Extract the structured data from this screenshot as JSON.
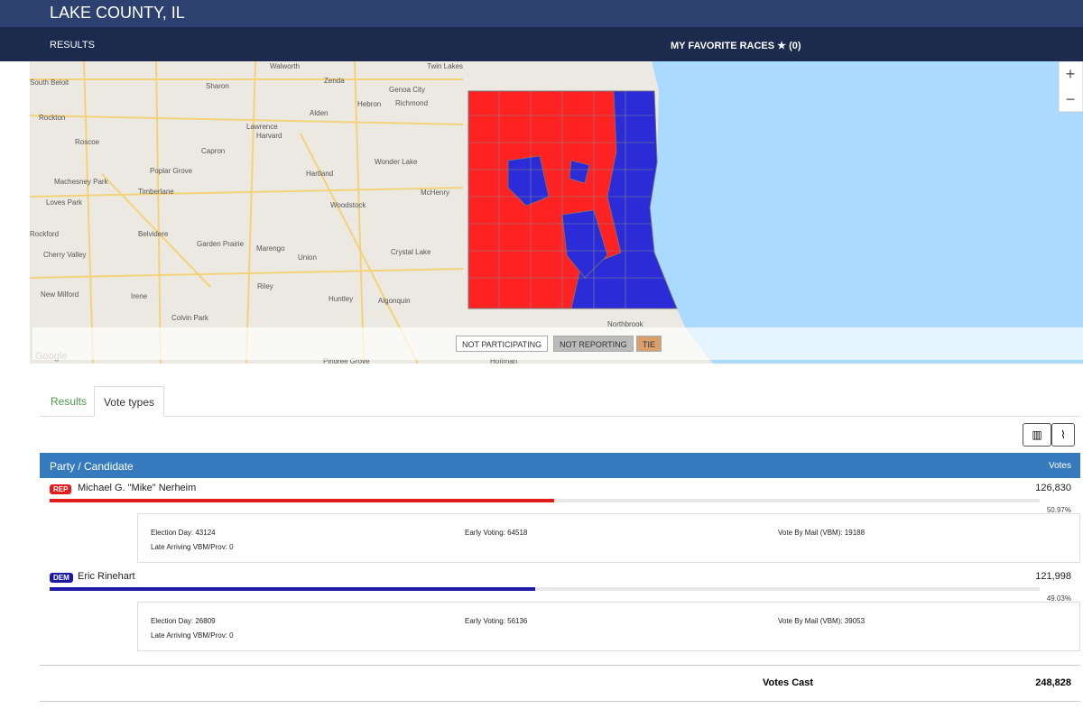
{
  "header": {
    "title": "LAKE COUNTY, IL",
    "nav": [
      "RESULTS",
      "MY FAVORITE RACES"
    ],
    "favorites_count": "(0)"
  },
  "map": {
    "places": [
      "Walworth",
      "Zenda",
      "Twin Lakes",
      "South Beloit",
      "Sharon",
      "Genoa City",
      "Rockton",
      "Alden",
      "Hebron",
      "Richmond",
      "Roscoe",
      "Lawrence",
      "Harvard",
      "Capron",
      "Wonder Lake",
      "Poplar Grove",
      "Hartland",
      "Machesney Park",
      "Timberlane",
      "Woodstock",
      "McHenry",
      "Loves Park",
      "Belvidere",
      "Rockford",
      "Garden Prairie",
      "Marengo",
      "Crystal Lake",
      "Cherry Valley",
      "Union",
      "Riley",
      "New Milford",
      "Irene",
      "Huntley",
      "Algonquin",
      "Colvin Park",
      "Northbrook",
      "Pingree Grove",
      "Hoffman"
    ],
    "attribution": "Google",
    "zoom": [
      "+",
      "−"
    ],
    "legend": [
      "NOT PARTICIPATING",
      "NOT REPORTING",
      "TIE"
    ]
  },
  "tabs": [
    "Results",
    "Vote types"
  ],
  "table": {
    "header": [
      "Party / Candidate",
      "Votes"
    ],
    "candidates": [
      {
        "party": "REP",
        "name": "Michael G. \"Mike\" Nerheim",
        "votes": "126,830",
        "percent": {
          "value": 50.97,
          "label": "50.97%"
        },
        "vote_types": [
          "Election Day: 43124",
          "Early Voting: 64518",
          "Vote By Mail (VBM): 19188",
          "Late Arriving VBM/Prov: 0"
        ]
      },
      {
        "party": "DEM",
        "name": "Eric Rinehart",
        "votes": "121,998",
        "percent": {
          "value": 49.03,
          "label": "49.03%"
        },
        "vote_types": [
          "Election Day: 26809",
          "Early Voting: 56136",
          "Vote By Mail (VBM): 39053",
          "Late Arriving VBM/Prov: 0"
        ]
      }
    ],
    "total_label": "Votes Cast",
    "total": "248,828"
  }
}
